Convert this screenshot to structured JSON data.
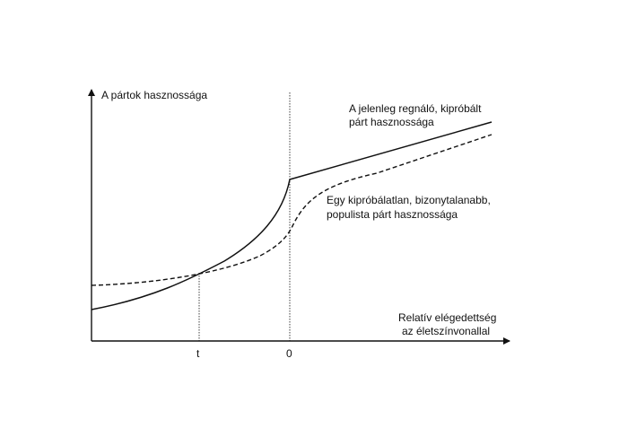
{
  "diagram": {
    "y_axis_label": "A pártok hasznossága",
    "x_axis_label_line1": "Relatív elégedettség",
    "x_axis_label_line2": "az életszínvonallal",
    "tick_t": "t",
    "tick_zero": "0",
    "solid_curve_label_line1": "A jelenleg regnáló, kipróbált",
    "solid_curve_label_line2": "párt hasznossága",
    "dashed_curve_label_line1": "Egy kipróbálatlan, bizonytalanabb,",
    "dashed_curve_label_line2": "populista párt hasznossága",
    "line_color": "#111111"
  }
}
